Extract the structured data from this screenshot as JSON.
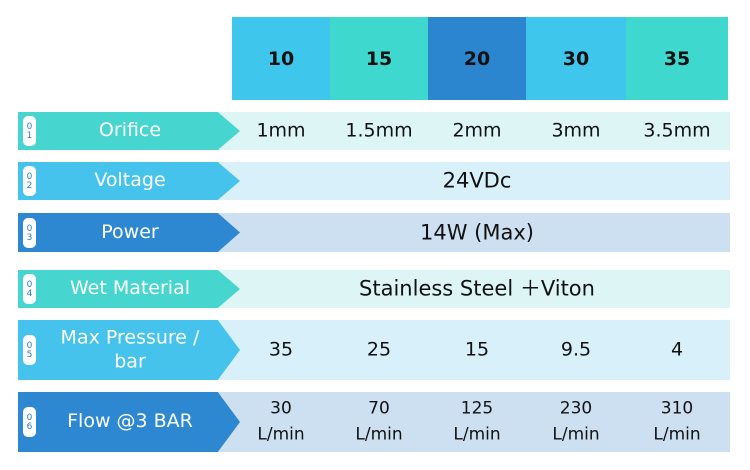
{
  "header": {
    "columns": [
      "10",
      "15",
      "20",
      "30",
      "35"
    ]
  },
  "rows": [
    {
      "num": "01",
      "name": "Orifice",
      "values": [
        "1mm",
        "1.5mm",
        "2mm",
        "3mm",
        "3.5mm"
      ]
    },
    {
      "num": "02",
      "name": "Voltage",
      "span": "24VDc"
    },
    {
      "num": "03",
      "name": "Power",
      "span": "14W (Max)"
    },
    {
      "num": "04",
      "name": "Wet Material",
      "span": "Stainless Steel ＋Viton"
    },
    {
      "num": "05",
      "name": "Max Pressure / bar",
      "values": [
        "35",
        "25",
        "15",
        "9.5",
        "4"
      ]
    },
    {
      "num": "06",
      "name": "Flow @3 BAR",
      "values": [
        "30\nL/min",
        "70\nL/min",
        "125\nL/min",
        "230\nL/min",
        "310\nL/min"
      ]
    }
  ]
}
